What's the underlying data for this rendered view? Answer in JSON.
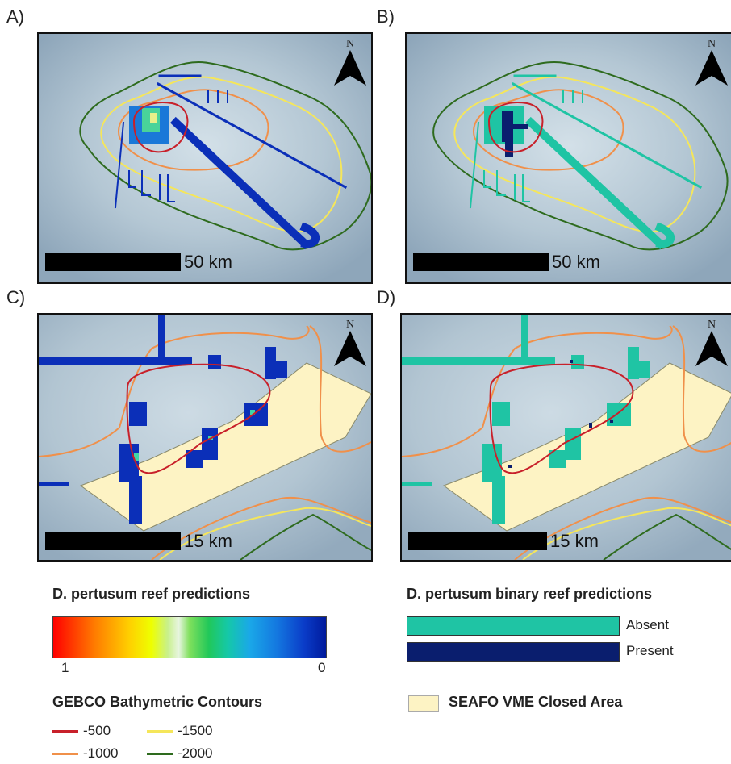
{
  "panels": [
    {
      "letter": "A)",
      "scale": "50 km"
    },
    {
      "letter": "B)",
      "scale": "50 km"
    },
    {
      "letter": "C)",
      "scale": "15 km"
    },
    {
      "letter": "D)",
      "scale": "15 km"
    }
  ],
  "north_label": "N",
  "legend": {
    "predictions_title": "D. pertusum reef predictions",
    "gradient_max": "1",
    "gradient_min": "0",
    "binary_title": "D. pertusum binary reef predictions",
    "binary_items": [
      {
        "label": "Absent",
        "color": "#1fc4a4"
      },
      {
        "label": "Present",
        "color": "#0a1e6e"
      }
    ],
    "closed_area_label": "SEAFO VME Closed Area",
    "closed_area_color": "#fdf3c4",
    "contours_title": "GEBCO Bathymetric Contours",
    "contours": [
      {
        "label": "-500",
        "color": "#c8202a"
      },
      {
        "label": "-1500",
        "color": "#f5e65a"
      },
      {
        "label": "-1000",
        "color": "#f0904a"
      },
      {
        "label": "-2000",
        "color": "#2e6b1e"
      }
    ]
  },
  "colors": {
    "sea": "#a9bccc",
    "shallow": "#c8d8e2",
    "continuous_pred": "#0b2fb8",
    "binary_absent": "#1fc4a4",
    "binary_present": "#0a1e6e"
  }
}
